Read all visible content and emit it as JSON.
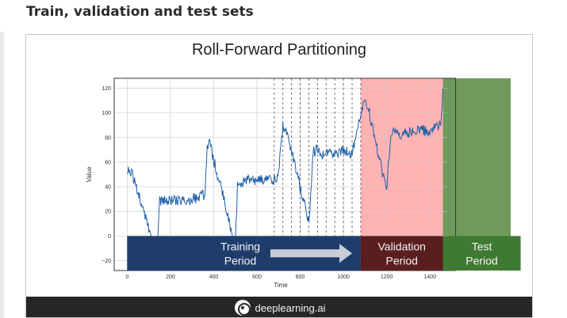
{
  "page": {
    "heading": "Train, validation and test sets"
  },
  "slide": {
    "title": "Roll-Forward Partitioning",
    "footer_brand": "deeplearning.ai"
  },
  "colors": {
    "series": "#1f5fa8",
    "training_band": "#1f3d6b",
    "validation_fill": "#ffb3b3",
    "validation_band": "#5a1e1e",
    "test_fill": "#6f9a5c",
    "test_band": "#3f7a32"
  },
  "chart_data": {
    "type": "line",
    "title": "",
    "xlabel": "Time",
    "ylabel": "Value",
    "xlim": [
      -60,
      1480
    ],
    "ylim": [
      -28,
      128
    ],
    "xticks": [
      0,
      200,
      400,
      600,
      800,
      1000,
      1200,
      1400
    ],
    "yticks": [
      -20,
      0,
      20,
      40,
      60,
      80,
      100,
      120
    ],
    "grid": true,
    "roll_forward_splits": [
      680,
      720,
      760,
      800,
      840,
      880,
      920,
      960,
      1000,
      1040,
      1080
    ],
    "regions": [
      {
        "name": "Training Period",
        "x": [
          0,
          1080
        ]
      },
      {
        "name": "Validation Period",
        "x": [
          1080,
          1460
        ]
      },
      {
        "name": "Test Period",
        "x": [
          1460,
          1480
        ]
      }
    ],
    "series": [
      {
        "x": [
          0,
          20,
          40,
          60,
          80,
          100,
          120,
          130,
          140,
          150,
          170,
          200,
          240,
          280,
          320,
          360,
          370,
          380,
          400,
          420,
          440,
          460,
          480,
          500,
          510,
          520,
          560,
          600,
          640,
          680,
          700,
          720,
          740,
          760,
          780,
          800,
          820,
          840,
          860,
          880,
          900,
          920,
          960,
          1000,
          1040,
          1080,
          1100,
          1120,
          1140,
          1160,
          1180,
          1200,
          1220,
          1240,
          1260,
          1280,
          1300,
          1340,
          1380,
          1420,
          1450,
          1460
        ],
        "values": [
          55,
          52,
          40,
          30,
          18,
          5,
          -8,
          -18,
          -5,
          28,
          30,
          28,
          30,
          29,
          31,
          34,
          70,
          75,
          62,
          48,
          35,
          20,
          5,
          -10,
          40,
          42,
          45,
          44,
          47,
          45,
          50,
          90,
          82,
          70,
          55,
          40,
          25,
          10,
          68,
          70,
          66,
          68,
          67,
          69,
          66,
          100,
          110,
          100,
          82,
          68,
          52,
          40,
          85,
          88,
          82,
          86,
          84,
          87,
          85,
          88,
          90,
          120
        ]
      }
    ]
  },
  "bands": {
    "training_line1": "Training",
    "training_line2": "Period",
    "validation_line1": "Validation",
    "validation_line2": "Period",
    "test_line1": "Test",
    "test_line2": "Period"
  }
}
